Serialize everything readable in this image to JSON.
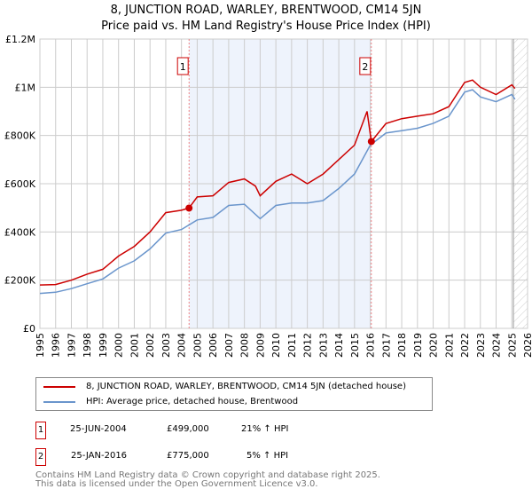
{
  "header": {
    "title": "8, JUNCTION ROAD, WARLEY, BRENTWOOD, CM14 5JN",
    "subtitle": "Price paid vs. HM Land Registry's House Price Index (HPI)"
  },
  "chart_data": {
    "type": "line",
    "xlim": [
      1995,
      2026
    ],
    "ylim": [
      0,
      1200000
    ],
    "x_ticks": [
      "1995",
      "1996",
      "1997",
      "1998",
      "1999",
      "2000",
      "2001",
      "2002",
      "2003",
      "2004",
      "2005",
      "2006",
      "2007",
      "2008",
      "2009",
      "2010",
      "2011",
      "2012",
      "2013",
      "2014",
      "2015",
      "2016",
      "2017",
      "2018",
      "2019",
      "2020",
      "2021",
      "2022",
      "2023",
      "2024",
      "2025",
      "2026"
    ],
    "y_ticks": [
      {
        "v": 0,
        "label": "£0"
      },
      {
        "v": 200000,
        "label": "£200K"
      },
      {
        "v": 400000,
        "label": "£400K"
      },
      {
        "v": 600000,
        "label": "£600K"
      },
      {
        "v": 800000,
        "label": "£800K"
      },
      {
        "v": 1000000,
        "label": "£1M"
      },
      {
        "v": 1200000,
        "label": "£1.2M"
      }
    ],
    "grid": true,
    "shaded_range": [
      2004.48,
      2016.07
    ],
    "hatched_from": 2025.1,
    "series": [
      {
        "name": "8, JUNCTION ROAD, WARLEY, BRENTWOOD, CM14 5JN (detached house)",
        "color": "#cc0000",
        "x": [
          1995,
          1996,
          1997,
          1998,
          1999,
          2000,
          2001,
          2002,
          2003,
          2004,
          2004.48,
          2005,
          2006,
          2007,
          2008,
          2008.7,
          2009,
          2010,
          2011,
          2012,
          2013,
          2014,
          2015,
          2015.8,
          2016.07,
          2017,
          2018,
          2019,
          2020,
          2021,
          2022,
          2022.5,
          2023,
          2024,
          2025,
          2025.2
        ],
        "y": [
          180000,
          182000,
          200000,
          225000,
          245000,
          300000,
          340000,
          400000,
          480000,
          490000,
          499000,
          545000,
          550000,
          605000,
          620000,
          590000,
          550000,
          610000,
          640000,
          600000,
          640000,
          700000,
          760000,
          900000,
          775000,
          850000,
          870000,
          880000,
          890000,
          920000,
          1020000,
          1030000,
          1000000,
          970000,
          1010000,
          995000
        ]
      },
      {
        "name": "HPI: Average price, detached house, Brentwood",
        "color": "#6a95cc",
        "x": [
          1995,
          1996,
          1997,
          1998,
          1999,
          2000,
          2001,
          2002,
          2003,
          2004,
          2005,
          2006,
          2007,
          2008,
          2009,
          2010,
          2011,
          2012,
          2013,
          2014,
          2015,
          2016,
          2017,
          2018,
          2019,
          2020,
          2021,
          2022,
          2022.5,
          2023,
          2024,
          2025,
          2025.2
        ],
        "y": [
          145000,
          150000,
          165000,
          185000,
          205000,
          250000,
          280000,
          330000,
          395000,
          410000,
          450000,
          460000,
          510000,
          515000,
          455000,
          510000,
          520000,
          520000,
          530000,
          580000,
          640000,
          760000,
          810000,
          820000,
          830000,
          850000,
          880000,
          980000,
          990000,
          960000,
          940000,
          970000,
          950000
        ]
      }
    ],
    "annotations": [
      {
        "label": "1",
        "x": 2004.48,
        "y": 499000
      },
      {
        "label": "2",
        "x": 2016.07,
        "y": 775000
      }
    ]
  },
  "legend": {
    "items": [
      {
        "label": "8, JUNCTION ROAD, WARLEY, BRENTWOOD, CM14 5JN (detached house)",
        "color": "#cc0000"
      },
      {
        "label": "HPI: Average price, detached house, Brentwood",
        "color": "#6a95cc"
      }
    ]
  },
  "transactions": [
    {
      "num": "1",
      "date": "25-JUN-2004",
      "price": "£499,000",
      "hpi": "21% ↑ HPI"
    },
    {
      "num": "2",
      "date": "25-JAN-2016",
      "price": "£775,000",
      "hpi": "5% ↑ HPI"
    }
  ],
  "footer": {
    "line1": "Contains HM Land Registry data © Crown copyright and database right 2025.",
    "line2": "This data is licensed under the Open Government Licence v3.0."
  }
}
